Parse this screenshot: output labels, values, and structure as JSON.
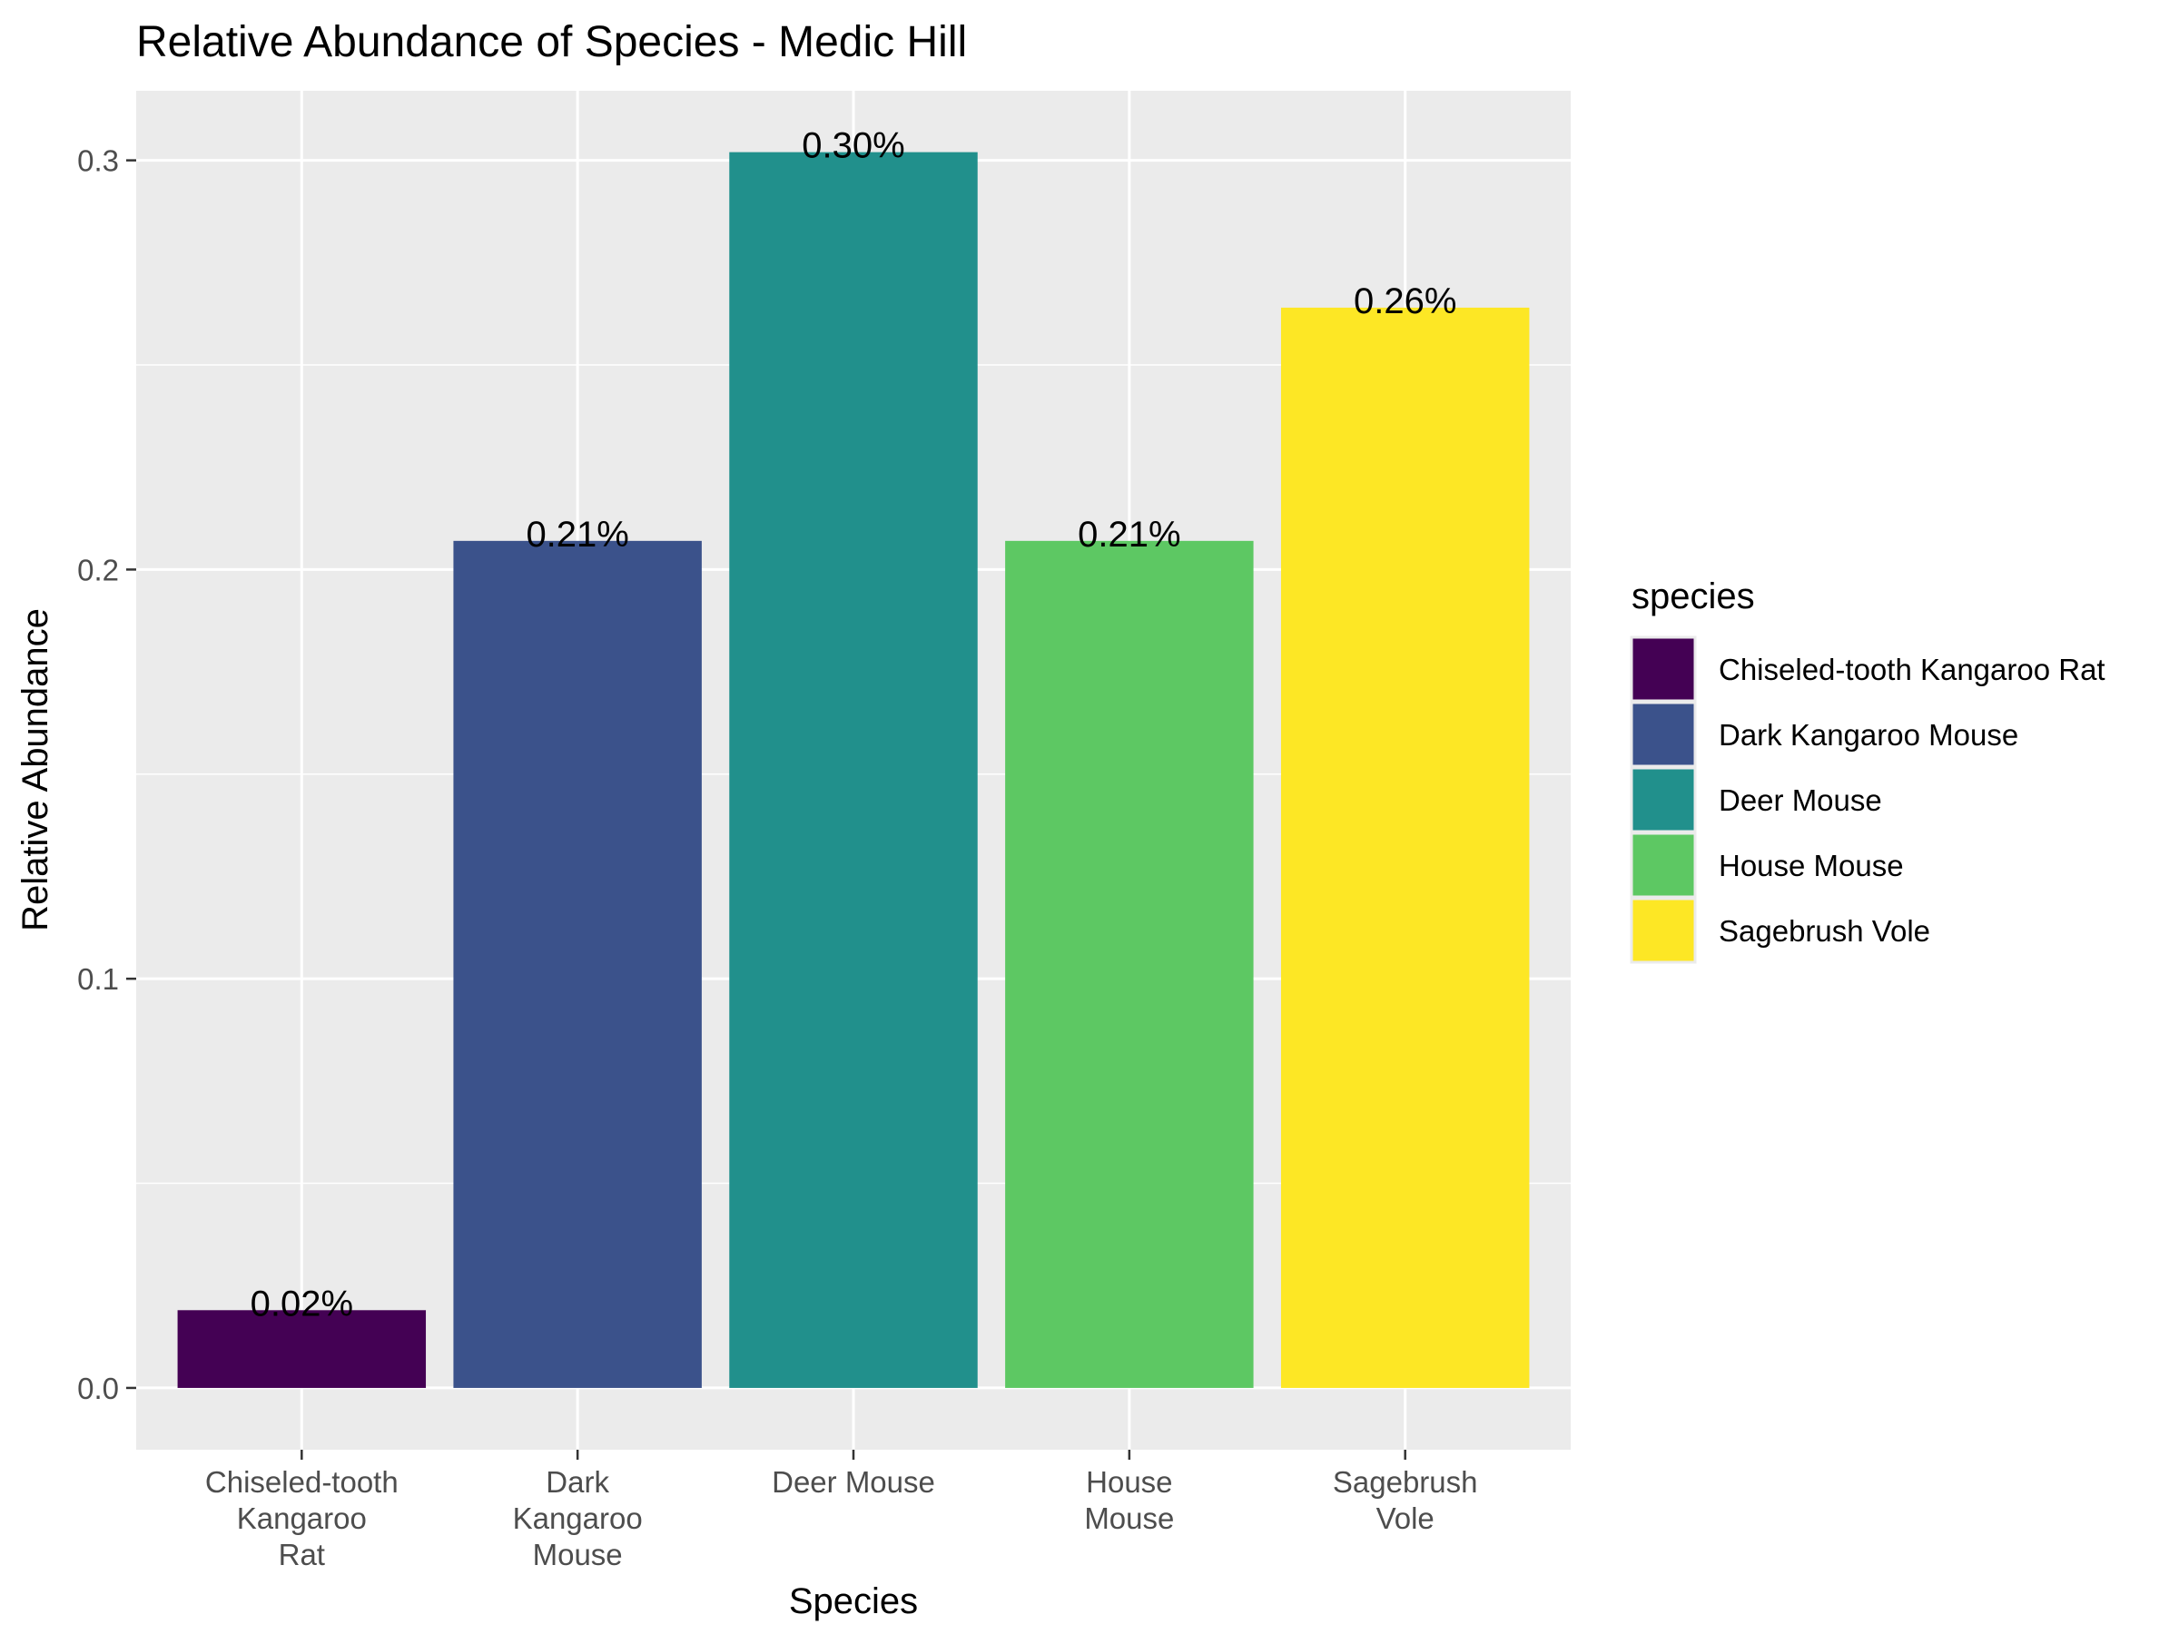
{
  "chart_data": {
    "type": "bar",
    "title": "Relative Abundance of Species - Medic Hill",
    "xlabel": "Species",
    "ylabel": "Relative Abundance",
    "categories": [
      "Chiseled-tooth Kangaroo Rat",
      "Dark Kangaroo Mouse",
      "Deer Mouse",
      "House Mouse",
      "Sagebrush Vole"
    ],
    "category_tick_labels": [
      [
        "Chiseled-tooth",
        "Kangaroo",
        "Rat"
      ],
      [
        "Dark",
        "Kangaroo",
        "Mouse"
      ],
      [
        "Deer Mouse"
      ],
      [
        "House",
        "Mouse"
      ],
      [
        "Sagebrush",
        "Vole"
      ]
    ],
    "values": [
      0.019,
      0.207,
      0.302,
      0.207,
      0.264
    ],
    "data_labels": [
      "0.02%",
      "0.21%",
      "0.30%",
      "0.21%",
      "0.26%"
    ],
    "colors": [
      "#440154",
      "#3B528B",
      "#21908C",
      "#5DC863",
      "#FDE725"
    ],
    "ylim": [
      -0.0151,
      0.317
    ],
    "yticks": [
      0.0,
      0.1,
      0.2,
      0.3
    ],
    "ytick_labels": [
      "0.0",
      "0.1",
      "0.2",
      "0.3"
    ],
    "grid": true,
    "background": "#EBEBEB",
    "legend": {
      "title": "species",
      "position": "right",
      "entries": [
        "Chiseled-tooth Kangaroo Rat",
        "Dark Kangaroo Mouse",
        "Deer Mouse",
        "House Mouse",
        "Sagebrush Vole"
      ]
    }
  }
}
